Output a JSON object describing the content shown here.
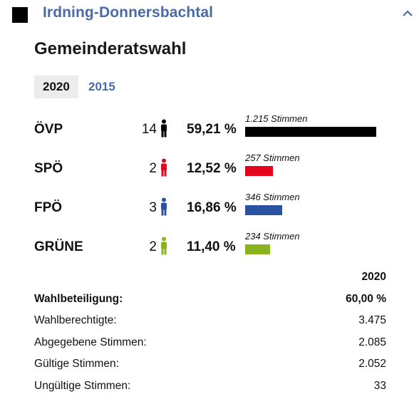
{
  "header": {
    "title": "Irdning-Donnersbachtal",
    "accent_color": "#4a6aa8",
    "icons": [
      "square-icon",
      "chevron-up-icon"
    ]
  },
  "section_title": "Gemeinderatswahl",
  "tabs": [
    {
      "label": "2020",
      "active": true
    },
    {
      "label": "2015",
      "active": false
    }
  ],
  "results": [
    {
      "party": "ÖVP",
      "seats": "14",
      "percent": "59,21 %",
      "votes": "1.215 Stimmen",
      "vote_count": 1215,
      "color": "#000000"
    },
    {
      "party": "SPÖ",
      "seats": "2",
      "percent": "12,52 %",
      "votes": "257 Stimmen",
      "vote_count": 257,
      "color": "#e3051b"
    },
    {
      "party": "FPÖ",
      "seats": "3",
      "percent": "16,86 %",
      "votes": "346 Stimmen",
      "vote_count": 346,
      "color": "#2a52a0"
    },
    {
      "party": "GRÜNE",
      "seats": "2",
      "percent": "11,40 %",
      "votes": "234 Stimmen",
      "vote_count": 234,
      "color": "#8ab41e"
    }
  ],
  "stats": {
    "year_header": "2020",
    "rows": [
      {
        "label": "Wahlbeteiligung:",
        "value": "60,00 %",
        "bold": true
      },
      {
        "label": "Wahlberechtigte:",
        "value": "3.475",
        "bold": false
      },
      {
        "label": "Abgegebene Stimmen:",
        "value": "2.085",
        "bold": false
      },
      {
        "label": "Gültige Stimmen:",
        "value": "2.052",
        "bold": false
      },
      {
        "label": "Ungültige Stimmen:",
        "value": "33",
        "bold": false
      }
    ]
  }
}
